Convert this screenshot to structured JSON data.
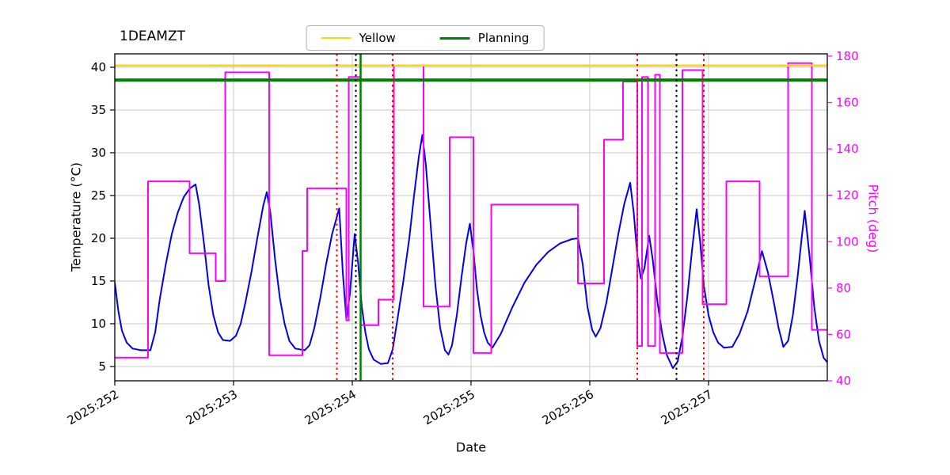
{
  "title": "1DEAMZT",
  "axes": {
    "xlabel": "Date",
    "ylabel_left": "Temperature (°C)",
    "ylabel_right": "Pitch (deg)",
    "right_color": "#ff00ff",
    "grid_color": "#c9c9c9"
  },
  "legend": {
    "items": [
      {
        "label": "Yellow",
        "color": "#ffd700",
        "width": 2
      },
      {
        "label": "Planning",
        "color": "#008000",
        "width": 3
      }
    ]
  },
  "chart_data": {
    "type": "line",
    "title": "1DEAMZT",
    "xlabel": "Date",
    "ylabel_left": "Temperature (°C)",
    "ylabel_right": "Pitch (deg)",
    "x_domain": [
      252,
      258
    ],
    "x_ticks": [
      {
        "v": 252,
        "label": "2025:252"
      },
      {
        "v": 253,
        "label": "2025:253"
      },
      {
        "v": 254,
        "label": "2025:254"
      },
      {
        "v": 255,
        "label": "2025:255"
      },
      {
        "v": 256,
        "label": "2025:256"
      },
      {
        "v": 257,
        "label": "2025:257"
      }
    ],
    "y_left": {
      "domain": [
        3.33,
        41.57
      ],
      "ticks": [
        5,
        10,
        15,
        20,
        25,
        30,
        35,
        40
      ]
    },
    "y_right": {
      "domain": [
        40,
        181
      ],
      "ticks": [
        40,
        60,
        80,
        100,
        120,
        140,
        160,
        180
      ]
    },
    "hlines": [
      {
        "name": "yellow-limit",
        "y": 40.2,
        "color": "#ffd700",
        "width": 2.5
      },
      {
        "name": "planning-limit",
        "y": 38.5,
        "color": "#008000",
        "width": 4
      }
    ],
    "vlines": [
      {
        "x": 253.87,
        "color": "#ff0000",
        "style": "dotted",
        "width": 2
      },
      {
        "x": 254.03,
        "color": "#000000",
        "style": "dotted",
        "width": 2
      },
      {
        "x": 254.07,
        "color": "#008000",
        "style": "solid",
        "width": 2.5
      },
      {
        "x": 254.34,
        "color": "#ff0000",
        "style": "dotted",
        "width": 2
      },
      {
        "x": 256.4,
        "color": "#ff0000",
        "style": "dotted",
        "width": 2
      },
      {
        "x": 256.73,
        "color": "#000000",
        "style": "dotted",
        "width": 2
      },
      {
        "x": 256.96,
        "color": "#ff0000",
        "style": "dotted",
        "width": 2
      }
    ],
    "series": [
      {
        "name": "temperature",
        "axis": "left",
        "color": "#0000ee",
        "width": 2,
        "points": [
          [
            252.0,
            14.8
          ],
          [
            252.03,
            11.5
          ],
          [
            252.06,
            9.2
          ],
          [
            252.1,
            7.8
          ],
          [
            252.15,
            7.1
          ],
          [
            252.22,
            6.9
          ],
          [
            252.3,
            6.9
          ],
          [
            252.34,
            9.0
          ],
          [
            252.38,
            13.0
          ],
          [
            252.43,
            17.0
          ],
          [
            252.48,
            20.5
          ],
          [
            252.53,
            23.0
          ],
          [
            252.58,
            24.8
          ],
          [
            252.63,
            25.8
          ],
          [
            252.68,
            26.3
          ],
          [
            252.71,
            24.0
          ],
          [
            252.75,
            19.5
          ],
          [
            252.79,
            14.5
          ],
          [
            252.83,
            11.0
          ],
          [
            252.87,
            9.0
          ],
          [
            252.91,
            8.1
          ],
          [
            252.97,
            8.0
          ],
          [
            253.02,
            8.6
          ],
          [
            253.06,
            10.0
          ],
          [
            253.1,
            12.5
          ],
          [
            253.15,
            16.0
          ],
          [
            253.2,
            20.0
          ],
          [
            253.25,
            23.8
          ],
          [
            253.28,
            25.4
          ],
          [
            253.31,
            23.0
          ],
          [
            253.35,
            17.5
          ],
          [
            253.39,
            13.0
          ],
          [
            253.43,
            10.0
          ],
          [
            253.47,
            8.0
          ],
          [
            253.52,
            7.1
          ],
          [
            253.6,
            6.9
          ],
          [
            253.64,
            7.5
          ],
          [
            253.68,
            9.5
          ],
          [
            253.73,
            13.0
          ],
          [
            253.78,
            17.0
          ],
          [
            253.83,
            20.5
          ],
          [
            253.89,
            23.5
          ],
          [
            253.92,
            16.0
          ],
          [
            253.95,
            10.5
          ],
          [
            253.98,
            13.5
          ],
          [
            254.02,
            20.5
          ],
          [
            254.05,
            17.0
          ],
          [
            254.08,
            12.0
          ],
          [
            254.11,
            9.0
          ],
          [
            254.14,
            7.0
          ],
          [
            254.18,
            5.8
          ],
          [
            254.24,
            5.3
          ],
          [
            254.3,
            5.4
          ],
          [
            254.34,
            7.0
          ],
          [
            254.38,
            10.5
          ],
          [
            254.43,
            15.0
          ],
          [
            254.48,
            20.0
          ],
          [
            254.52,
            25.0
          ],
          [
            254.56,
            29.5
          ],
          [
            254.59,
            32.1
          ],
          [
            254.62,
            28.5
          ],
          [
            254.66,
            21.5
          ],
          [
            254.7,
            14.5
          ],
          [
            254.74,
            9.5
          ],
          [
            254.78,
            6.9
          ],
          [
            254.81,
            6.4
          ],
          [
            254.84,
            7.5
          ],
          [
            254.88,
            11.0
          ],
          [
            254.92,
            15.5
          ],
          [
            254.96,
            19.5
          ],
          [
            254.99,
            21.7
          ],
          [
            255.02,
            18.5
          ],
          [
            255.05,
            14.0
          ],
          [
            255.08,
            11.0
          ],
          [
            255.11,
            9.0
          ],
          [
            255.14,
            7.8
          ],
          [
            255.18,
            7.2
          ],
          [
            255.25,
            8.8
          ],
          [
            255.35,
            12.0
          ],
          [
            255.45,
            14.8
          ],
          [
            255.55,
            16.9
          ],
          [
            255.65,
            18.4
          ],
          [
            255.75,
            19.4
          ],
          [
            255.85,
            19.9
          ],
          [
            255.9,
            20.0
          ],
          [
            255.94,
            17.0
          ],
          [
            255.98,
            12.0
          ],
          [
            256.02,
            9.3
          ],
          [
            256.05,
            8.5
          ],
          [
            256.09,
            9.5
          ],
          [
            256.14,
            12.5
          ],
          [
            256.19,
            16.5
          ],
          [
            256.24,
            20.5
          ],
          [
            256.29,
            24.0
          ],
          [
            256.34,
            26.5
          ],
          [
            256.37,
            23.0
          ],
          [
            256.4,
            18.0
          ],
          [
            256.43,
            15.3
          ],
          [
            256.46,
            16.5
          ],
          [
            256.5,
            20.3
          ],
          [
            256.53,
            17.5
          ],
          [
            256.57,
            12.5
          ],
          [
            256.61,
            8.8
          ],
          [
            256.65,
            6.3
          ],
          [
            256.7,
            4.8
          ],
          [
            256.74,
            5.6
          ],
          [
            256.78,
            8.5
          ],
          [
            256.82,
            13.0
          ],
          [
            256.86,
            18.5
          ],
          [
            256.9,
            23.4
          ],
          [
            256.93,
            19.5
          ],
          [
            256.96,
            14.5
          ],
          [
            257.0,
            11.0
          ],
          [
            257.04,
            9.0
          ],
          [
            257.08,
            7.8
          ],
          [
            257.13,
            7.2
          ],
          [
            257.2,
            7.3
          ],
          [
            257.26,
            8.8
          ],
          [
            257.33,
            11.5
          ],
          [
            257.4,
            15.5
          ],
          [
            257.45,
            18.5
          ],
          [
            257.5,
            16.0
          ],
          [
            257.55,
            12.5
          ],
          [
            257.59,
            9.5
          ],
          [
            257.63,
            7.3
          ],
          [
            257.67,
            8.0
          ],
          [
            257.71,
            11.0
          ],
          [
            257.75,
            15.5
          ],
          [
            257.78,
            19.5
          ],
          [
            257.81,
            23.2
          ],
          [
            257.85,
            18.0
          ],
          [
            257.89,
            12.0
          ],
          [
            257.93,
            8.0
          ],
          [
            257.97,
            6.0
          ],
          [
            258.0,
            5.5
          ]
        ]
      },
      {
        "name": "pitch",
        "axis": "right",
        "color": "#ff00ff",
        "width": 2,
        "points": [
          [
            252.0,
            50
          ],
          [
            252.28,
            50
          ],
          [
            252.28,
            126
          ],
          [
            252.63,
            126
          ],
          [
            252.63,
            95
          ],
          [
            252.85,
            95
          ],
          [
            252.85,
            83
          ],
          [
            252.93,
            83
          ],
          [
            252.93,
            173
          ],
          [
            253.3,
            173
          ],
          [
            253.3,
            51
          ],
          [
            253.58,
            51
          ],
          [
            253.58,
            96
          ],
          [
            253.62,
            96
          ],
          [
            253.62,
            123
          ],
          [
            253.95,
            123
          ],
          [
            253.95,
            66
          ],
          [
            253.97,
            66
          ],
          [
            253.97,
            171
          ],
          [
            254.07,
            171
          ],
          [
            254.07,
            64
          ],
          [
            254.22,
            64
          ],
          [
            254.22,
            75
          ],
          [
            254.35,
            75
          ],
          [
            254.35,
            176
          ],
          [
            254.6,
            176
          ],
          [
            254.6,
            72
          ],
          [
            254.82,
            72
          ],
          [
            254.82,
            145
          ],
          [
            255.02,
            145
          ],
          [
            255.02,
            52
          ],
          [
            255.17,
            52
          ],
          [
            255.17,
            116
          ],
          [
            255.9,
            116
          ],
          [
            255.9,
            82
          ],
          [
            256.12,
            82
          ],
          [
            256.12,
            144
          ],
          [
            256.28,
            144
          ],
          [
            256.28,
            169
          ],
          [
            256.4,
            169
          ],
          [
            256.4,
            55
          ],
          [
            256.44,
            55
          ],
          [
            256.44,
            171
          ],
          [
            256.49,
            171
          ],
          [
            256.49,
            55
          ],
          [
            256.55,
            55
          ],
          [
            256.55,
            172
          ],
          [
            256.59,
            172
          ],
          [
            256.59,
            52
          ],
          [
            256.78,
            52
          ],
          [
            256.78,
            174
          ],
          [
            256.95,
            174
          ],
          [
            256.95,
            73
          ],
          [
            257.15,
            73
          ],
          [
            257.15,
            126
          ],
          [
            257.43,
            126
          ],
          [
            257.43,
            85
          ],
          [
            257.67,
            85
          ],
          [
            257.67,
            177
          ],
          [
            257.87,
            177
          ],
          [
            257.87,
            62
          ],
          [
            258.0,
            62
          ]
        ]
      }
    ]
  }
}
